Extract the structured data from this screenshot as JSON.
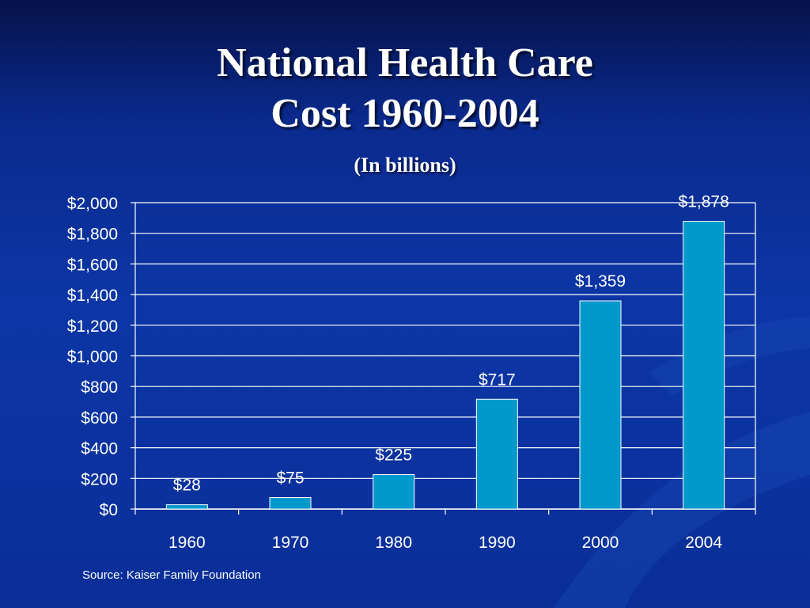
{
  "slide": {
    "title_line1": "National Health Care",
    "title_line2": "Cost 1960-2004",
    "subtitle": "(In billions)",
    "source": "Source: Kaiser Family Foundation"
  },
  "colors": {
    "background": "#0a2e98",
    "bar": "#0099cc",
    "text": "#ffffff"
  },
  "chart_data": {
    "type": "bar",
    "title": "National Health Care Cost 1960-2004",
    "subtitle": "(In billions)",
    "categories": [
      "1960",
      "1970",
      "1980",
      "1990",
      "2000",
      "2004"
    ],
    "values": [
      28,
      75,
      225,
      717,
      1359,
      1878
    ],
    "data_labels": [
      "$28",
      "$75",
      "$225",
      "$717",
      "$1,359",
      "$1,878"
    ],
    "ylim": [
      0,
      2000
    ],
    "yticks": [
      0,
      200,
      400,
      600,
      800,
      1000,
      1200,
      1400,
      1600,
      1800,
      2000
    ],
    "ytick_labels": [
      "$0",
      "$200",
      "$400",
      "$600",
      "$800",
      "$1,000",
      "$1,200",
      "$1,400",
      "$1,600",
      "$1,800",
      "$2,000"
    ],
    "xlabel": "",
    "ylabel": "",
    "grid": true,
    "legend": "none"
  }
}
